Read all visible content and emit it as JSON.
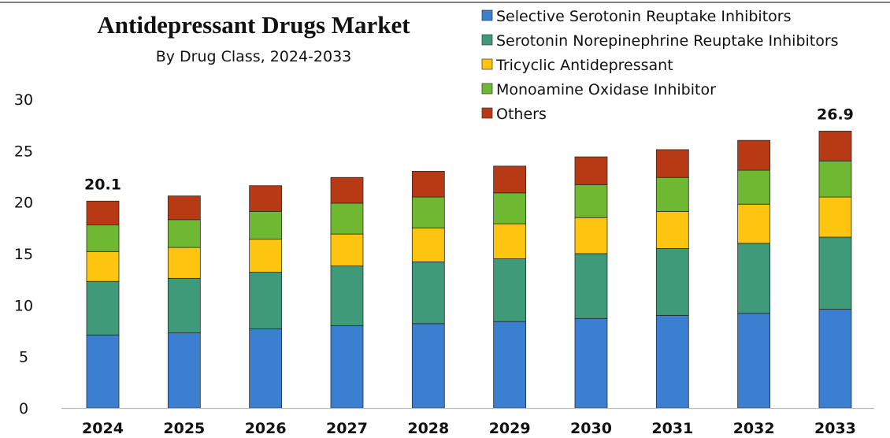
{
  "chart_data": {
    "type": "bar",
    "stacked": true,
    "title": "Antidepressant Drugs Market",
    "subtitle": "By Drug Class, 2024-2033",
    "categories": [
      "2024",
      "2025",
      "2026",
      "2027",
      "2028",
      "2029",
      "2030",
      "2031",
      "2032",
      "2033"
    ],
    "series": [
      {
        "name": "Selective Serotonin Reuptake Inhibitors",
        "color": "#3b7fd0",
        "values": [
          7.1,
          7.3,
          7.7,
          8.0,
          8.2,
          8.4,
          8.7,
          9.0,
          9.2,
          9.6
        ]
      },
      {
        "name": "Serotonin Norepinephrine Reuptake Inhibitors",
        "color": "#3e9a78",
        "values": [
          5.2,
          5.3,
          5.5,
          5.8,
          6.0,
          6.1,
          6.3,
          6.5,
          6.8,
          7.0
        ]
      },
      {
        "name": "Tricyclic Antidepressant",
        "color": "#fdc50f",
        "values": [
          2.9,
          3.0,
          3.2,
          3.1,
          3.3,
          3.4,
          3.5,
          3.6,
          3.8,
          3.9
        ]
      },
      {
        "name": "Monoamine Oxidase Inhibitor",
        "color": "#6fb832",
        "values": [
          2.6,
          2.7,
          2.7,
          3.0,
          3.0,
          3.0,
          3.2,
          3.3,
          3.3,
          3.5
        ]
      },
      {
        "name": "Others",
        "color": "#b83a14",
        "values": [
          2.3,
          2.3,
          2.5,
          2.5,
          2.5,
          2.6,
          2.7,
          2.7,
          2.9,
          2.9
        ]
      }
    ],
    "ylim": [
      0,
      30
    ],
    "yticks": [
      0,
      5,
      10,
      15,
      20,
      25,
      30
    ],
    "xlabel": "",
    "ylabel": "",
    "grid": false,
    "legend_position": "top-right",
    "data_labels": [
      {
        "category": "2024",
        "text": "20.1"
      },
      {
        "category": "2033",
        "text": "26.9"
      }
    ]
  }
}
